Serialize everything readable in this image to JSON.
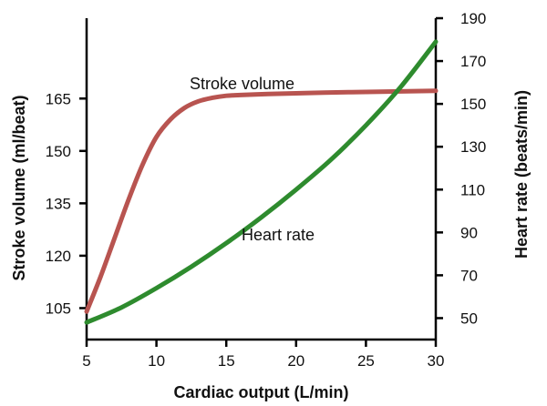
{
  "chart_data": {
    "type": "line",
    "title": "",
    "xlabel": "Cardiac output (L/min)",
    "ylabel_left": "Stroke volume (ml/beat)",
    "ylabel_right": "Heart rate (beats/min)",
    "xlim": [
      5,
      30
    ],
    "ylim_left": [
      96,
      188
    ],
    "ylim_right": [
      40,
      190
    ],
    "x_ticks": [
      5,
      10,
      15,
      20,
      25,
      30
    ],
    "y_left_ticks": [
      105,
      120,
      135,
      150,
      165
    ],
    "y_right_ticks": [
      50,
      70,
      90,
      110,
      130,
      150,
      170,
      190
    ],
    "grid": false,
    "legend": "none",
    "series": [
      {
        "name": "Stroke volume",
        "axis": "left",
        "color": "#b85450",
        "x": [
          5,
          6,
          7,
          8,
          9,
          10,
          11,
          12,
          13,
          14,
          15,
          16,
          18,
          20,
          22,
          25,
          28,
          30
        ],
        "values": [
          104,
          114,
          125,
          136,
          146,
          154,
          159,
          162.3,
          164.2,
          165.2,
          165.8,
          166,
          166.3,
          166.5,
          166.7,
          166.9,
          167.1,
          167.2
        ]
      },
      {
        "name": "Heart rate",
        "axis": "right",
        "color": "#2e8b2e",
        "x": [
          5,
          7.5,
          10,
          12.5,
          15,
          17.5,
          20,
          22.5,
          25,
          27.5,
          30
        ],
        "values": [
          48,
          55,
          64,
          74,
          85,
          97,
          110,
          124,
          140,
          158,
          179
        ]
      }
    ],
    "annotations": [
      {
        "text": "Stroke volume",
        "series": "Stroke volume"
      },
      {
        "text": "Heart rate",
        "series": "Heart rate"
      }
    ]
  }
}
